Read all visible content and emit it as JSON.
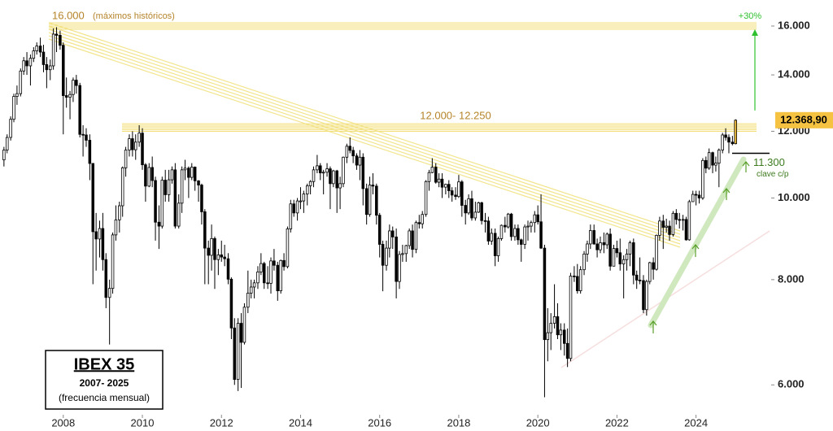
{
  "chart_data": {
    "type": "candlestick",
    "title": "IBEX 35",
    "subtitle": "2007- 2025",
    "note": "(frecuencia mensual)",
    "log_scale": true,
    "up_color": "#ffffff",
    "down_color": "#000000",
    "outline_color": "#000000",
    "highlight_color": "#f5c242",
    "band_color": "#f2df7a",
    "xlim": [
      2006.4,
      2025.9
    ],
    "xticks": [
      2008,
      2010,
      2012,
      2014,
      2016,
      2018,
      2020,
      2022,
      2024
    ],
    "ylim": [
      5530,
      17180
    ],
    "yticks": [
      {
        "value": 6000,
        "label": "6.000"
      },
      {
        "value": 8000,
        "label": "8.000"
      },
      {
        "value": 10000,
        "label": "10.000"
      },
      {
        "value": 12000,
        "label": "12.000"
      },
      {
        "value": 14000,
        "label": "14.000"
      },
      {
        "value": 16000,
        "label": "16.000"
      }
    ],
    "resistance": {
      "value": 16000,
      "label": "16.000",
      "note": "(máximos históricos)"
    },
    "range": {
      "from": 12000,
      "to": 12250,
      "label": "12.000- 12.250"
    },
    "support": {
      "value": 11300,
      "label": "11.300",
      "note": "clave c/p"
    },
    "target_label": "+30%",
    "last_close_label": "12.368,90",
    "x": [
      2006.5,
      2006.58,
      2006.67,
      2006.75,
      2006.83,
      2006.92,
      2007,
      2007.08,
      2007.17,
      2007.25,
      2007.33,
      2007.42,
      2007.5,
      2007.58,
      2007.67,
      2007.75,
      2007.83,
      2007.92,
      2008,
      2008.08,
      2008.17,
      2008.25,
      2008.33,
      2008.42,
      2008.5,
      2008.58,
      2008.67,
      2008.75,
      2008.83,
      2008.92,
      2009,
      2009.08,
      2009.17,
      2009.25,
      2009.33,
      2009.42,
      2009.5,
      2009.58,
      2009.67,
      2009.75,
      2009.83,
      2009.92,
      2010,
      2010.08,
      2010.17,
      2010.25,
      2010.33,
      2010.42,
      2010.5,
      2010.58,
      2010.67,
      2010.75,
      2010.83,
      2010.92,
      2011,
      2011.08,
      2011.17,
      2011.25,
      2011.33,
      2011.42,
      2011.5,
      2011.58,
      2011.67,
      2011.75,
      2011.83,
      2011.92,
      2012,
      2012.08,
      2012.17,
      2012.25,
      2012.33,
      2012.42,
      2012.5,
      2012.58,
      2012.67,
      2012.75,
      2012.83,
      2012.92,
      2013,
      2013.08,
      2013.17,
      2013.25,
      2013.33,
      2013.42,
      2013.5,
      2013.58,
      2013.67,
      2013.75,
      2013.83,
      2013.92,
      2014,
      2014.08,
      2014.17,
      2014.25,
      2014.33,
      2014.42,
      2014.5,
      2014.58,
      2014.67,
      2014.75,
      2014.83,
      2014.92,
      2015,
      2015.08,
      2015.17,
      2015.25,
      2015.33,
      2015.42,
      2015.5,
      2015.58,
      2015.67,
      2015.75,
      2015.83,
      2015.92,
      2016,
      2016.08,
      2016.17,
      2016.25,
      2016.33,
      2016.42,
      2016.5,
      2016.58,
      2016.67,
      2016.75,
      2016.83,
      2016.92,
      2017,
      2017.08,
      2017.17,
      2017.25,
      2017.33,
      2017.42,
      2017.5,
      2017.58,
      2017.67,
      2017.75,
      2017.83,
      2017.92,
      2018,
      2018.08,
      2018.17,
      2018.25,
      2018.33,
      2018.42,
      2018.5,
      2018.58,
      2018.67,
      2018.75,
      2018.83,
      2018.92,
      2019,
      2019.08,
      2019.17,
      2019.25,
      2019.33,
      2019.42,
      2019.5,
      2019.58,
      2019.67,
      2019.75,
      2019.83,
      2019.92,
      2020,
      2020.08,
      2020.17,
      2020.25,
      2020.33,
      2020.42,
      2020.5,
      2020.58,
      2020.67,
      2020.75,
      2020.83,
      2020.92,
      2021,
      2021.08,
      2021.17,
      2021.25,
      2021.33,
      2021.42,
      2021.5,
      2021.58,
      2021.67,
      2021.75,
      2021.83,
      2021.92,
      2022,
      2022.08,
      2022.17,
      2022.25,
      2022.33,
      2022.42,
      2022.5,
      2022.58,
      2022.67,
      2022.75,
      2022.83,
      2022.92,
      2023,
      2023.08,
      2023.17,
      2023.25,
      2023.33,
      2023.42,
      2023.5,
      2023.58,
      2023.67,
      2023.75,
      2023.83,
      2023.92,
      2024,
      2024.08,
      2024.17,
      2024.25,
      2024.33,
      2024.42,
      2024.5,
      2024.58,
      2024.67,
      2024.75,
      2024.83,
      2024.92,
      2025
    ],
    "open": [
      11100,
      11400,
      11800,
      12400,
      13200,
      13300,
      14150,
      14550,
      14350,
      14650,
      14950,
      15150,
      14900,
      14400,
      14200,
      14350,
      15650,
      15600,
      15180,
      13230,
      13170,
      13270,
      13800,
      13600,
      11900,
      11880,
      11710,
      10990,
      9120,
      8940,
      9200,
      8450,
      7620,
      7810,
      9040,
      9420,
      9790,
      10860,
      11400,
      11760,
      11410,
      11650,
      11940,
      10950,
      10330,
      10870,
      10490,
      9360,
      9260,
      10500,
      10090,
      10510,
      10800,
      9260,
      9860,
      10800,
      10850,
      10580,
      10880,
      10480,
      10360,
      9630,
      8720,
      8550,
      8950,
      8450,
      8560,
      8510,
      8470,
      8010,
      7010,
      6090,
      7100,
      6740,
      7420,
      7710,
      7840,
      7930,
      8170,
      8360,
      7930,
      7920,
      8420,
      8320,
      7760,
      8430,
      8290,
      9190,
      9840,
      9600,
      9920,
      9920,
      10110,
      10340,
      10460,
      10800,
      10920,
      10710,
      10730,
      10830,
      10400,
      10770,
      10280,
      10400,
      11180,
      11520,
      11390,
      11220,
      10940,
      11180,
      10260,
      9560,
      10360,
      10330,
      9540,
      8810,
      8320,
      8720,
      9140,
      8990,
      7960,
      8570,
      8590,
      8780,
      9140,
      8690,
      9350,
      9320,
      9560,
      10460,
      10720,
      10880,
      10440,
      10530,
      10300,
      10380,
      10200,
      10080,
      10040,
      10450,
      9800,
      9600,
      9980,
      9470,
      9620,
      9870,
      9400,
      9390,
      8890,
      9080,
      8540,
      8950,
      9280,
      9240,
      9570,
      9000,
      9200,
      8920,
      8810,
      9240,
      9260,
      9350,
      9550,
      9370,
      8720,
      6790,
      6920,
      7100,
      7230,
      6880,
      6970,
      6720,
      6450,
      8080,
      8070,
      7760,
      8220,
      8580,
      8820,
      9150,
      8820,
      8680,
      8850,
      8800,
      9060,
      8300,
      8710,
      8610,
      8350,
      8450,
      8580,
      8850,
      8100,
      7990,
      7980,
      7370,
      7960,
      8380,
      8230,
      9030,
      9390,
      9230,
      9260,
      9050,
      9590,
      9430,
      9410,
      9430,
      8920,
      9900,
      10100,
      10080,
      10000,
      11080,
      10850,
      11320,
      10940,
      11000,
      11400,
      11880,
      11800,
      11650,
      11600
    ],
    "high": [
      11500,
      11900,
      12500,
      13300,
      13600,
      14250,
      14700,
      14900,
      14800,
      15100,
      15300,
      15500,
      15200,
      14700,
      14600,
      15900,
      15950,
      15800,
      15300,
      13900,
      13400,
      13900,
      14000,
      13700,
      12200,
      12100,
      11900,
      11000,
      9600,
      9400,
      9600,
      8600,
      8000,
      9100,
      9800,
      9900,
      10900,
      11500,
      11900,
      12000,
      11900,
      12200,
      12100,
      11000,
      11000,
      11200,
      10600,
      9800,
      10600,
      10800,
      10800,
      10900,
      11000,
      10100,
      10900,
      11100,
      10900,
      11000,
      10900,
      10500,
      10400,
      9700,
      8900,
      9300,
      9000,
      8700,
      8900,
      8800,
      8600,
      8050,
      7200,
      7200,
      7300,
      7500,
      8200,
      8000,
      8000,
      8300,
      8600,
      8400,
      8300,
      8500,
      8700,
      8400,
      8450,
      8600,
      9250,
      9950,
      9950,
      10000,
      10300,
      10200,
      10400,
      10500,
      10900,
      11250,
      11000,
      10800,
      11000,
      10900,
      10800,
      10800,
      10600,
      11200,
      11600,
      11800,
      11500,
      11300,
      11400,
      11300,
      10400,
      10600,
      10700,
      10400,
      9600,
      8900,
      8900,
      9300,
      9250,
      9200,
      8650,
      8800,
      8800,
      9200,
      9300,
      9400,
      9550,
      9650,
      10500,
      10800,
      11150,
      11000,
      10700,
      10700,
      10400,
      10500,
      10300,
      10300,
      10650,
      10500,
      9950,
      10100,
      10200,
      9900,
      9900,
      9900,
      9600,
      9500,
      9200,
      9200,
      9000,
      9300,
      9500,
      9600,
      9600,
      9300,
      9300,
      8950,
      9300,
      9400,
      9400,
      9650,
      9800,
      10100,
      8800,
      7400,
      7300,
      7900,
      7500,
      7100,
      7100,
      7000,
      8150,
      8300,
      8350,
      8300,
      8650,
      8900,
      9300,
      9300,
      8950,
      9000,
      9100,
      9100,
      9200,
      8800,
      8900,
      8950,
      8550,
      8700,
      8900,
      8950,
      8200,
      8500,
      8100,
      8000,
      8400,
      8500,
      9050,
      9500,
      9550,
      9450,
      9400,
      9650,
      9700,
      9600,
      9550,
      9500,
      9950,
      10200,
      10200,
      10200,
      11150,
      11200,
      11450,
      11350,
      11200,
      11450,
      11950,
      12100,
      11900,
      11850,
      12400
    ],
    "low": [
      10900,
      11300,
      11700,
      12300,
      12900,
      13200,
      14000,
      14000,
      13600,
      14500,
      14800,
      14700,
      14100,
      13500,
      13800,
      14200,
      14900,
      15000,
      11900,
      12800,
      12400,
      13000,
      13300,
      11800,
      11200,
      11500,
      10500,
      7900,
      8200,
      8500,
      8200,
      7400,
      6700,
      7700,
      8900,
      9100,
      9500,
      10600,
      11200,
      11200,
      11100,
      11500,
      10800,
      9900,
      10300,
      10300,
      8900,
      8700,
      9200,
      9900,
      9900,
      10400,
      9200,
      9200,
      9600,
      10500,
      10000,
      10500,
      10200,
      9900,
      9300,
      7900,
      7900,
      8200,
      7800,
      8100,
      8400,
      8300,
      7900,
      6800,
      6000,
      5900,
      5950,
      6700,
      7300,
      7600,
      7600,
      7800,
      8100,
      7800,
      7800,
      7700,
      8200,
      7550,
      7700,
      8200,
      8250,
      9100,
      9500,
      9400,
      9700,
      9600,
      9800,
      10100,
      10300,
      10700,
      10500,
      10100,
      10600,
      9700,
      10300,
      9600,
      9700,
      10300,
      11000,
      11300,
      11000,
      10800,
      10500,
      9800,
      9300,
      9500,
      10100,
      9300,
      8500,
      7750,
      8200,
      8500,
      8700,
      7600,
      7800,
      8400,
      8400,
      8700,
      8500,
      8600,
      9200,
      9200,
      9500,
      10200,
      10700,
      10400,
      10300,
      10000,
      10100,
      10000,
      9900,
      9950,
      10000,
      9500,
      9300,
      9550,
      9400,
      9400,
      9600,
      9300,
      9100,
      8800,
      8800,
      8300,
      8400,
      8900,
      9100,
      9200,
      8900,
      8900,
      8800,
      8400,
      8700,
      8900,
      9100,
      9100,
      9300,
      8700,
      5800,
      6400,
      6600,
      7000,
      6800,
      6600,
      6500,
      6300,
      6400,
      7950,
      7700,
      7700,
      8100,
      8400,
      8700,
      8800,
      8500,
      8600,
      8600,
      8700,
      8200,
      8300,
      8500,
      8200,
      7600,
      8200,
      8300,
      7900,
      7800,
      7900,
      7300,
      7250,
      7900,
      8000,
      8200,
      8900,
      8700,
      9100,
      8900,
      9000,
      9300,
      9200,
      9150,
      8900,
      8900,
      9900,
      9800,
      9850,
      9950,
      10700,
      10800,
      10700,
      10750,
      10300,
      11300,
      11700,
      11300,
      11550,
      11580
    ],
    "close": [
      11400,
      11800,
      12400,
      13200,
      13300,
      14150,
      14550,
      14350,
      14650,
      14950,
      15150,
      14900,
      14400,
      14200,
      14350,
      15650,
      15600,
      15180,
      13230,
      13170,
      13270,
      13800,
      13600,
      11900,
      11880,
      11710,
      10990,
      9120,
      8940,
      9200,
      8450,
      7620,
      7810,
      9040,
      9420,
      9790,
      10860,
      11400,
      11760,
      11410,
      11650,
      11940,
      10950,
      10330,
      10870,
      10490,
      9360,
      9260,
      10500,
      10090,
      10510,
      10800,
      9260,
      9860,
      10800,
      10850,
      10580,
      10880,
      10480,
      10360,
      9630,
      8720,
      8550,
      8950,
      8450,
      8560,
      8510,
      8470,
      8010,
      7010,
      6090,
      7100,
      6740,
      7420,
      7710,
      7840,
      7930,
      8170,
      8360,
      7930,
      7920,
      8420,
      8320,
      7760,
      8430,
      8290,
      9190,
      9840,
      9600,
      9920,
      9920,
      10110,
      10340,
      10460,
      10800,
      10920,
      10710,
      10730,
      10830,
      10400,
      10770,
      10280,
      10400,
      11180,
      11520,
      11390,
      11220,
      10940,
      11180,
      10260,
      9560,
      10360,
      10330,
      9540,
      8810,
      8320,
      8720,
      9140,
      8990,
      7960,
      8570,
      8590,
      8780,
      9140,
      8690,
      9350,
      9320,
      9560,
      10460,
      10720,
      10880,
      10440,
      10530,
      10300,
      10380,
      10200,
      10080,
      10040,
      10450,
      9800,
      9600,
      9980,
      9470,
      9620,
      9870,
      9400,
      9390,
      8890,
      9080,
      8540,
      8950,
      9280,
      9240,
      9570,
      9000,
      9200,
      8920,
      8810,
      9240,
      9260,
      9350,
      9550,
      9370,
      8720,
      6790,
      6920,
      7100,
      7230,
      6880,
      6970,
      6720,
      6450,
      8080,
      8070,
      7760,
      8220,
      8580,
      8820,
      9150,
      8820,
      8680,
      8850,
      8800,
      9060,
      8300,
      8710,
      8610,
      8350,
      8450,
      8580,
      8850,
      8100,
      7990,
      7980,
      7370,
      7960,
      8380,
      8230,
      9030,
      9390,
      9230,
      9260,
      9050,
      9590,
      9430,
      9410,
      9430,
      8920,
      9900,
      10100,
      10080,
      10000,
      11080,
      10850,
      11320,
      10940,
      11000,
      11400,
      11880,
      11800,
      11650,
      11600,
      12368.9
    ]
  }
}
